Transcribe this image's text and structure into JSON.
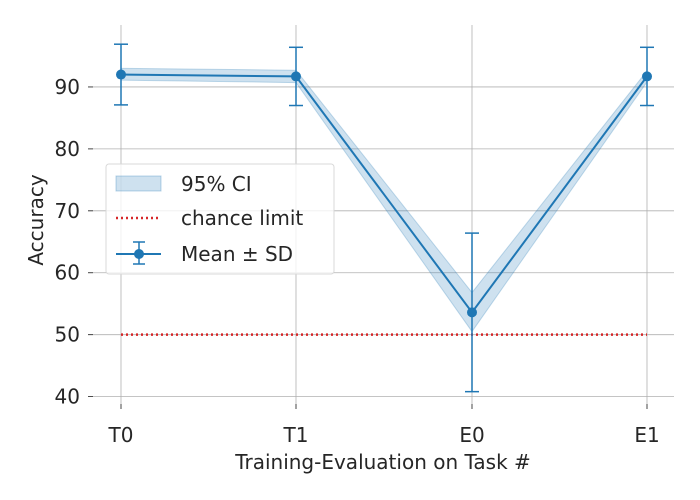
{
  "chart_data": {
    "type": "line",
    "title": "",
    "xlabel": "Training-Evaluation on Task #",
    "ylabel": "Accuracy",
    "categories": [
      "T0",
      "T1",
      "E0",
      "E1"
    ],
    "yticks": [
      40,
      50,
      60,
      70,
      80,
      90
    ],
    "ylim": [
      38,
      100
    ],
    "grid": true,
    "legend_position": "center-left",
    "series": [
      {
        "name": "Mean ± SD",
        "kind": "errorbar-line",
        "color": "#1f77b4",
        "values": [
          92.0,
          91.7,
          53.6,
          91.7
        ],
        "sd": [
          4.9,
          4.7,
          12.8,
          4.7
        ]
      },
      {
        "name": "95% CI",
        "kind": "band",
        "color": "#1f77b4",
        "opacity": 0.22,
        "lower": [
          91.1,
          90.7,
          50.5,
          90.8
        ],
        "upper": [
          93.0,
          92.7,
          56.8,
          92.6
        ]
      },
      {
        "name": "chance limit",
        "kind": "hline",
        "color": "#d62728",
        "value": 50
      }
    ],
    "legend": [
      "95% CI",
      "chance limit",
      "Mean ± SD"
    ]
  }
}
